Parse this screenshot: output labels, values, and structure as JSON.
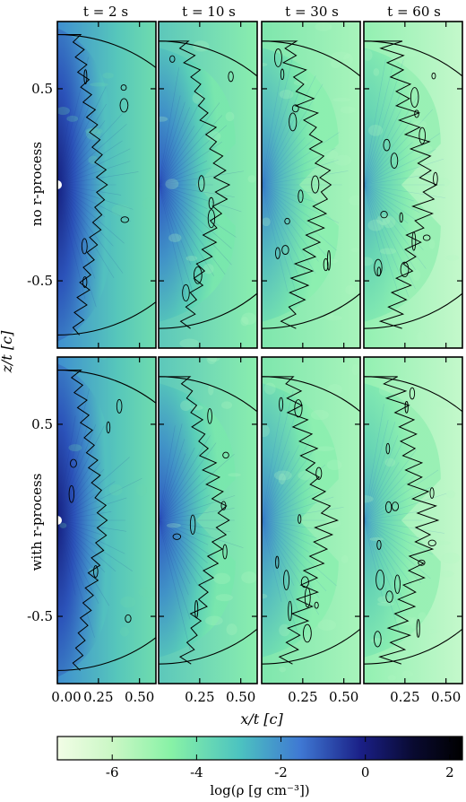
{
  "figure": {
    "column_titles": [
      "t = 2 s",
      "t = 10 s",
      "t = 30 s",
      "t = 60 s"
    ],
    "row_labels": [
      "no r-process",
      "with r-process"
    ],
    "y_axis_label": "z/t [c]",
    "x_axis_label": "x/t [c]",
    "colorbar_label": "log(ρ [g cm⁻³])",
    "colorbar_colors": [
      "#f2fde6",
      "#88f2a6",
      "#4cc3c0",
      "#3f78d3",
      "#1a1f86",
      "#000000"
    ]
  },
  "chart_data": {
    "type": "heatmap",
    "panels": [
      {
        "row": "no r-process",
        "time": "t = 2 s"
      },
      {
        "row": "no r-process",
        "time": "t = 10 s"
      },
      {
        "row": "no r-process",
        "time": "t = 30 s"
      },
      {
        "row": "no r-process",
        "time": "t = 60 s"
      },
      {
        "row": "with r-process",
        "time": "t = 2 s"
      },
      {
        "row": "with r-process",
        "time": "t = 10 s"
      },
      {
        "row": "with r-process",
        "time": "t = 30 s"
      },
      {
        "row": "with r-process",
        "time": "t = 60 s"
      }
    ],
    "xlabel": "x/t [c]",
    "ylabel": "z/t [c]",
    "x_ticks": [
      "0.00",
      "0.25",
      "0.50"
    ],
    "x_ticks_inner": [
      "0.25",
      "0.50"
    ],
    "y_ticks": [
      "0.5",
      "-0.5"
    ],
    "y_tick_values": [
      0.5,
      -0.5
    ],
    "xlim": [
      0,
      0.6
    ],
    "ylim": [
      -0.85,
      0.85
    ],
    "colorbar": {
      "label": "log(ρ [g cm⁻³])",
      "ticks": [
        "-6",
        "-4",
        "-2",
        "0",
        "2"
      ],
      "tick_values": [
        -6,
        -4,
        -2,
        0,
        2
      ],
      "range": [
        -7.3,
        2.3
      ]
    }
  }
}
